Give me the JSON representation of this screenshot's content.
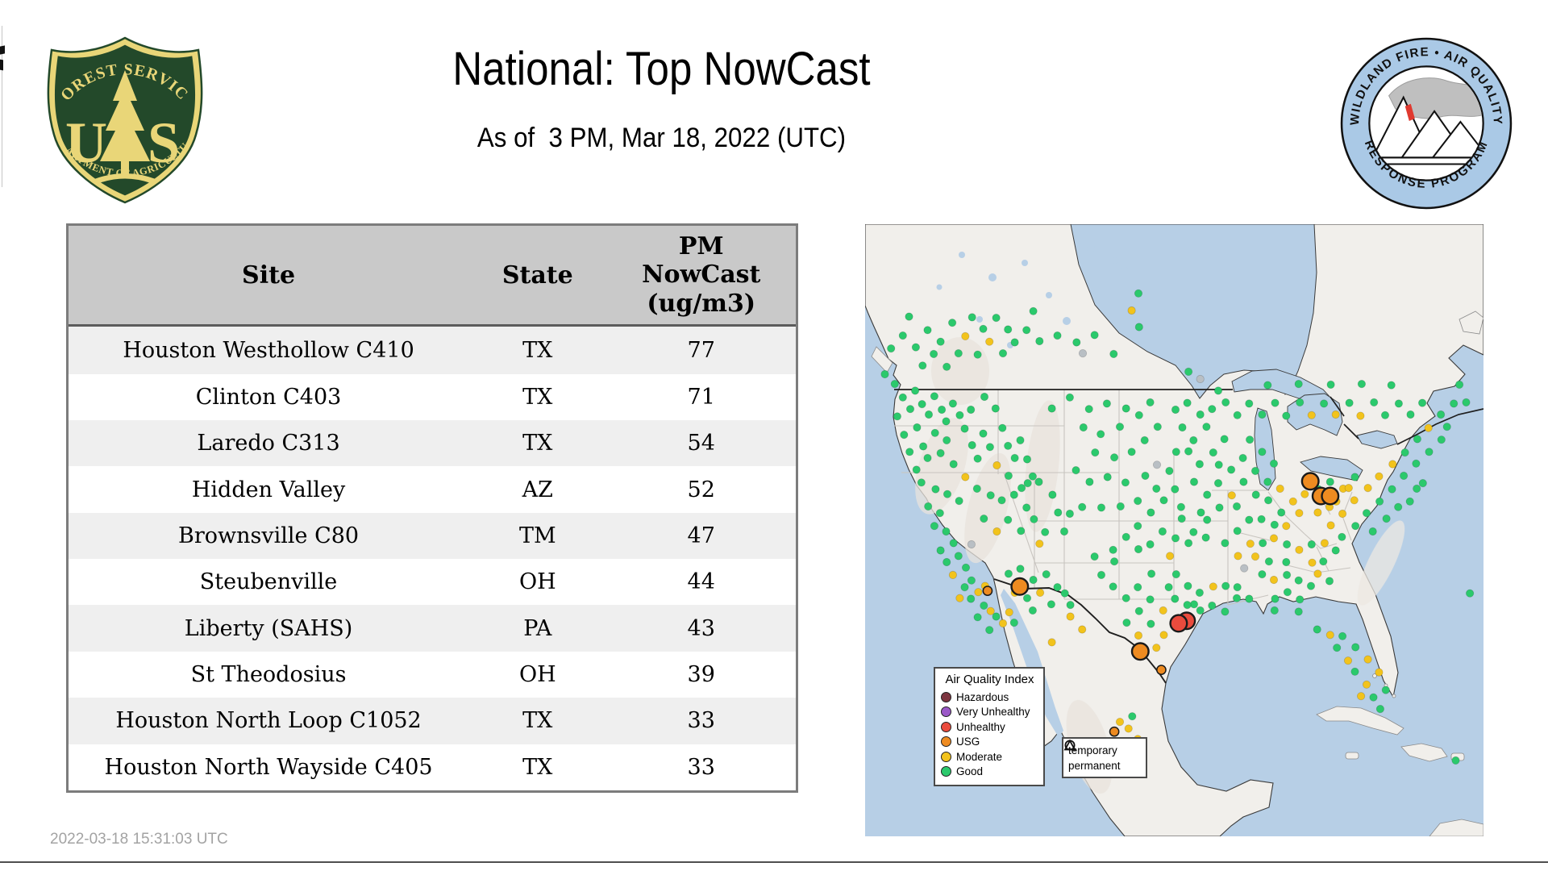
{
  "header": {
    "title": "National: Top NowCast",
    "subtitle": "As of  3 PM, Mar 18, 2022 (UTC)"
  },
  "logos": {
    "usfs": {
      "arc_top": "FOREST SERVICE",
      "letter_left": "U",
      "letter_right": "S",
      "arc_bottom": "DEPARTMENT OF AGRICULTURE",
      "green": "#23492a",
      "gold": "#e9d678"
    },
    "wfaqrp": {
      "arc_top": "WILDLAND FIRE • AIR QUALITY",
      "arc_bottom": "RESPONSE PROGRAM",
      "ring_blue": "#aac9e6",
      "flame_red": "#e0392f"
    }
  },
  "table": {
    "col_site": "Site",
    "col_state": "State",
    "col_pm_lines": [
      "PM",
      "NowCast",
      "(ug/m3)"
    ],
    "rows": [
      {
        "site": "Houston Westhollow C410",
        "state": "TX",
        "value": "77"
      },
      {
        "site": "Clinton C403",
        "state": "TX",
        "value": "71"
      },
      {
        "site": "Laredo C313",
        "state": "TX",
        "value": "54"
      },
      {
        "site": "Hidden Valley",
        "state": "AZ",
        "value": "52"
      },
      {
        "site": "Brownsville C80",
        "state": "TM",
        "value": "47"
      },
      {
        "site": "Steubenville",
        "state": "OH",
        "value": "44"
      },
      {
        "site": "Liberty (SAHS)",
        "state": "PA",
        "value": "43"
      },
      {
        "site": "St Theodosius",
        "state": "OH",
        "value": "39"
      },
      {
        "site": "Houston North Loop C1052",
        "state": "TX",
        "value": "33"
      },
      {
        "site": "Houston North Wayside C405",
        "state": "TX",
        "value": "33"
      }
    ]
  },
  "footer": {
    "timestamp": "2022-03-18 15:31:03 UTC"
  },
  "map": {
    "colors": {
      "g": "#2bc96c",
      "y": "#f2c31c",
      "G": "#b9bfc4",
      "o": "#ee8b21",
      "r": "#ea4b3d"
    },
    "legend_aqi": {
      "title": "Air Quality Index",
      "items": [
        {
          "label": "Hazardous",
          "color": "#7d3540"
        },
        {
          "label": "Very Unhealthy",
          "color": "#9b59c8"
        },
        {
          "label": "Unhealthy",
          "color": "#ea4b3d"
        },
        {
          "label": "USG",
          "color": "#ee8b21"
        },
        {
          "label": "Moderate",
          "color": "#f2c31c"
        },
        {
          "label": "Good",
          "color": "#2bc96c"
        }
      ]
    },
    "legend_type": {
      "items": [
        {
          "shape": "circle",
          "label": "temporary"
        },
        {
          "shape": "triangle",
          "label": "permanent"
        }
      ]
    },
    "dots": [
      [
        3.2,
        24.5
      ],
      [
        4.8,
        26.1
      ],
      [
        6.1,
        28.3
      ],
      [
        7.3,
        30.2
      ],
      [
        5.2,
        31.4
      ],
      [
        8.1,
        27.2
      ],
      [
        9.2,
        29.4
      ],
      [
        10.3,
        31.1
      ],
      [
        8.4,
        33.2
      ],
      [
        6.3,
        34.4
      ],
      [
        11.2,
        28.1
      ],
      [
        12.4,
        30.3
      ],
      [
        13.1,
        32.2
      ],
      [
        11.3,
        34.1
      ],
      [
        9.4,
        36.3
      ],
      [
        7.2,
        37.2
      ],
      [
        14.2,
        29.3
      ],
      [
        15.3,
        31.2
      ],
      [
        16.1,
        33.4
      ],
      [
        13.2,
        35.3
      ],
      [
        10.1,
        38.2
      ],
      [
        8.3,
        40.1
      ],
      [
        12.2,
        37.4
      ],
      [
        14.3,
        39.2
      ],
      [
        16.2,
        41.3,
        "y"
      ],
      [
        9.1,
        42.2
      ],
      [
        11.4,
        43.3
      ],
      [
        13.3,
        44.1
      ],
      [
        15.2,
        45.2
      ],
      [
        10.2,
        46.1
      ],
      [
        12.1,
        47.2
      ],
      [
        17.3,
        36.1
      ],
      [
        18.2,
        38.3
      ],
      [
        19.1,
        34.2
      ],
      [
        20.2,
        36.4
      ],
      [
        17.1,
        30.3
      ],
      [
        19.3,
        28.2
      ],
      [
        21.1,
        30.1
      ],
      [
        22.2,
        33.3
      ],
      [
        23.1,
        36.2
      ],
      [
        21.3,
        39.4,
        "y"
      ],
      [
        23.2,
        41.1
      ],
      [
        18.1,
        43.2
      ],
      [
        20.3,
        44.3
      ],
      [
        22.1,
        45.1
      ],
      [
        24.2,
        38.2
      ],
      [
        25.1,
        35.3
      ],
      [
        26.2,
        38.4
      ],
      [
        27.1,
        41.2
      ],
      [
        25.3,
        43.1
      ],
      [
        11.2,
        49.3
      ],
      [
        13.1,
        50.2
      ],
      [
        14.3,
        52.1
      ],
      [
        12.2,
        53.3
      ],
      [
        15.1,
        54.2
      ],
      [
        16.3,
        56.1
      ],
      [
        14.2,
        57.3,
        "y"
      ],
      [
        17.2,
        58.2
      ],
      [
        18.3,
        60.1,
        "y"
      ],
      [
        19.2,
        62.3
      ],
      [
        20.3,
        63.2,
        "y"
      ],
      [
        21.2,
        64.1
      ],
      [
        22.3,
        65.2,
        "y"
      ],
      [
        20.1,
        66.3
      ],
      [
        18.2,
        64.2
      ],
      [
        16.1,
        59.3
      ],
      [
        15.3,
        61.1,
        "y"
      ],
      [
        13.2,
        55.2
      ],
      [
        23.3,
        63.4,
        "y"
      ],
      [
        24.1,
        65.1
      ],
      [
        17.1,
        61.2
      ],
      [
        19.4,
        59.1,
        "y"
      ],
      [
        19.2,
        48.1
      ],
      [
        21.3,
        50.2,
        "y"
      ],
      [
        23.1,
        48.3
      ],
      [
        25.2,
        50.1
      ],
      [
        27.3,
        48.2
      ],
      [
        29.1,
        50.3
      ],
      [
        31.2,
        47.1
      ],
      [
        28.2,
        52.2,
        "y"
      ],
      [
        26.1,
        46.3
      ],
      [
        30.3,
        44.2
      ],
      [
        28.1,
        42.1
      ],
      [
        26.3,
        42.3
      ],
      [
        24.1,
        44.2
      ],
      [
        32.2,
        50.2
      ],
      [
        33.1,
        47.3
      ],
      [
        23.2,
        57.1
      ],
      [
        25.1,
        56.3
      ],
      [
        27.2,
        58.1
      ],
      [
        29.3,
        57.2
      ],
      [
        31.1,
        59.3
      ],
      [
        26.2,
        61.1
      ],
      [
        28.3,
        60.2,
        "y"
      ],
      [
        30.1,
        62.1
      ],
      [
        32.3,
        60.3
      ],
      [
        24.2,
        60.2,
        "y"
      ],
      [
        33.2,
        62.2
      ],
      [
        27.1,
        63.1
      ],
      [
        30.2,
        30.1
      ],
      [
        33.1,
        28.3
      ],
      [
        36.2,
        30.2
      ],
      [
        39.1,
        29.3
      ],
      [
        42.2,
        30.1
      ],
      [
        35.3,
        33.2
      ],
      [
        38.1,
        34.3
      ],
      [
        41.2,
        33.1
      ],
      [
        44.3,
        31.2
      ],
      [
        46.1,
        29.1
      ],
      [
        37.2,
        37.3
      ],
      [
        40.3,
        38.1
      ],
      [
        43.1,
        37.2
      ],
      [
        45.2,
        35.3
      ],
      [
        47.3,
        33.1
      ],
      [
        34.1,
        40.2
      ],
      [
        36.3,
        42.1
      ],
      [
        39.2,
        41.3
      ],
      [
        42.1,
        42.2
      ],
      [
        45.3,
        41.1
      ],
      [
        47.1,
        43.2
      ],
      [
        49.2,
        40.3
      ],
      [
        44.1,
        45.2
      ],
      [
        41.3,
        46.1
      ],
      [
        38.2,
        46.3
      ],
      [
        35.1,
        46.2
      ],
      [
        48.3,
        45.1
      ],
      [
        50.1,
        43.3
      ],
      [
        46.2,
        47.1
      ],
      [
        4.2,
        20.3
      ],
      [
        6.1,
        18.2
      ],
      [
        8.2,
        20.1
      ],
      [
        10.1,
        17.3
      ],
      [
        12.2,
        19.2
      ],
      [
        14.1,
        16.1
      ],
      [
        16.2,
        18.3,
        "y"
      ],
      [
        11.1,
        21.2
      ],
      [
        9.3,
        23.1
      ],
      [
        13.2,
        23.3
      ],
      [
        15.1,
        21.1
      ],
      [
        17.3,
        15.2
      ],
      [
        19.1,
        17.1
      ],
      [
        21.2,
        15.3
      ],
      [
        23.1,
        17.2
      ],
      [
        20.1,
        19.2,
        "y"
      ],
      [
        22.3,
        21.1
      ],
      [
        24.2,
        19.3
      ],
      [
        7.1,
        15.1
      ],
      [
        18.2,
        21.3
      ],
      [
        26.1,
        17.3
      ],
      [
        28.2,
        19.1
      ],
      [
        31.1,
        18.2
      ],
      [
        34.2,
        19.3
      ],
      [
        37.1,
        18.1
      ],
      [
        27.2,
        14.2
      ],
      [
        44.2,
        11.3
      ],
      [
        43.1,
        14.1,
        "y"
      ],
      [
        44.3,
        16.8
      ],
      [
        40.2,
        21.2
      ],
      [
        52.3,
        24.1
      ],
      [
        57.1,
        27.2
      ],
      [
        50.2,
        30.3
      ],
      [
        52.1,
        29.2
      ],
      [
        54.2,
        31.1
      ],
      [
        51.3,
        33.2
      ],
      [
        53.1,
        35.3
      ],
      [
        55.2,
        33.1
      ],
      [
        56.1,
        30.2
      ],
      [
        52.3,
        37.1
      ],
      [
        54.1,
        39.2
      ],
      [
        56.3,
        37.3
      ],
      [
        58.1,
        35.1
      ],
      [
        57.2,
        39.3
      ],
      [
        50.3,
        37.2
      ],
      [
        53.2,
        42.1
      ],
      [
        55.3,
        44.2
      ],
      [
        57.1,
        42.3
      ],
      [
        59.2,
        40.1
      ],
      [
        61.1,
        38.2
      ],
      [
        59.3,
        44.3,
        "y"
      ],
      [
        61.2,
        42.1
      ],
      [
        63.1,
        40.3
      ],
      [
        51.1,
        46.2
      ],
      [
        54.3,
        47.1
      ],
      [
        57.3,
        46.3
      ],
      [
        60.1,
        46.1
      ],
      [
        63.2,
        44.2
      ],
      [
        65.1,
        42.1
      ],
      [
        64.2,
        37.2
      ],
      [
        66.1,
        39.1
      ],
      [
        62.2,
        35.2
      ],
      [
        65.2,
        45.1
      ],
      [
        67.1,
        43.2,
        "y"
      ],
      [
        69.2,
        45.3,
        "y"
      ],
      [
        67.3,
        47.1
      ],
      [
        64.1,
        48.2
      ],
      [
        66.2,
        49.1
      ],
      [
        68.1,
        49.3,
        "y"
      ],
      [
        70.2,
        47.2,
        "y"
      ],
      [
        71.1,
        44.1,
        "y"
      ],
      [
        62.1,
        48.3
      ],
      [
        60.2,
        50.1
      ],
      [
        62.3,
        52.2,
        "y"
      ],
      [
        64.3,
        52.1
      ],
      [
        66.1,
        51.3,
        "y"
      ],
      [
        68.2,
        52.3
      ],
      [
        58.2,
        52.1
      ],
      [
        60.3,
        54.2,
        "y"
      ],
      [
        63.1,
        54.3,
        "y"
      ],
      [
        65.3,
        55.1
      ],
      [
        48.1,
        50.2
      ],
      [
        50.2,
        51.3
      ],
      [
        52.3,
        52.1
      ],
      [
        46.1,
        52.3
      ],
      [
        44.2,
        53.1
      ],
      [
        49.3,
        54.2,
        "y"
      ],
      [
        53.1,
        50.3
      ],
      [
        42.2,
        51.1
      ],
      [
        40.1,
        53.2
      ],
      [
        51.2,
        48.1
      ],
      [
        44.1,
        49.3
      ],
      [
        55.1,
        51.2
      ],
      [
        55.3,
        48.3
      ],
      [
        38.2,
        57.3
      ],
      [
        40.1,
        59.2
      ],
      [
        42.2,
        61.1
      ],
      [
        44.3,
        63.2
      ],
      [
        46.1,
        61.3
      ],
      [
        48.2,
        63.1,
        "y"
      ],
      [
        50.1,
        61.2
      ],
      [
        46.3,
        57.1
      ],
      [
        44.1,
        59.3
      ],
      [
        42.3,
        65.1
      ],
      [
        44.2,
        67.2,
        "y"
      ],
      [
        46.2,
        65.3
      ],
      [
        48.3,
        67.1,
        "y"
      ],
      [
        47.1,
        69.2,
        "y"
      ],
      [
        40.3,
        55.1
      ],
      [
        37.1,
        54.3
      ],
      [
        52.2,
        59.1
      ],
      [
        50.3,
        57.2
      ],
      [
        53.2,
        62.1
      ],
      [
        49.1,
        59.3
      ],
      [
        45.2,
        70.1,
        "y"
      ],
      [
        52.1,
        62.2
      ],
      [
        54.2,
        63.1
      ],
      [
        56.1,
        62.3
      ],
      [
        58.2,
        63.3
      ],
      [
        60.1,
        61.1
      ],
      [
        56.3,
        59.2,
        "y"
      ],
      [
        58.3,
        59.1
      ],
      [
        60.2,
        59.3
      ],
      [
        62.1,
        61.2
      ],
      [
        54.1,
        60.2
      ],
      [
        64.2,
        57.2
      ],
      [
        66.1,
        58.1,
        "y"
      ],
      [
        68.2,
        57.3
      ],
      [
        70.1,
        58.2
      ],
      [
        68.3,
        60.1
      ],
      [
        66.3,
        61.2
      ],
      [
        70.3,
        61.3
      ],
      [
        72.1,
        59.1
      ],
      [
        68.1,
        55.2
      ],
      [
        72.3,
        55.3,
        "y"
      ],
      [
        74.1,
        55.1
      ],
      [
        70.2,
        53.2,
        "y"
      ],
      [
        72.2,
        52.3
      ],
      [
        74.3,
        52.1,
        "y"
      ],
      [
        76.1,
        53.3
      ],
      [
        66.2,
        63.1
      ],
      [
        70.1,
        63.3
      ],
      [
        73.2,
        57.1,
        "y"
      ],
      [
        75.1,
        58.3
      ],
      [
        73.1,
        66.2
      ],
      [
        75.2,
        67.1,
        "y"
      ],
      [
        76.3,
        69.2
      ],
      [
        78.1,
        71.3,
        "y"
      ],
      [
        79.2,
        73.1
      ],
      [
        81.1,
        75.2,
        "y"
      ],
      [
        82.2,
        77.3
      ],
      [
        81.3,
        71.1,
        "y"
      ],
      [
        79.3,
        69.1
      ],
      [
        83.1,
        73.2,
        "y"
      ],
      [
        84.2,
        76.1
      ],
      [
        77.2,
        67.3
      ],
      [
        80.2,
        77.1,
        "y"
      ],
      [
        83.3,
        79.2
      ],
      [
        73.2,
        47.1,
        "y"
      ],
      [
        75.1,
        46.2,
        "y"
      ],
      [
        77.2,
        47.3,
        "y"
      ],
      [
        79.1,
        45.1,
        "y"
      ],
      [
        75.3,
        49.2,
        "y"
      ],
      [
        77.1,
        51.1
      ],
      [
        79.3,
        49.3
      ],
      [
        81.1,
        47.2
      ],
      [
        83.2,
        45.3
      ],
      [
        81.3,
        43.1,
        "y"
      ],
      [
        83.1,
        41.2,
        "y"
      ],
      [
        85.2,
        43.3
      ],
      [
        87.1,
        41.1
      ],
      [
        85.3,
        39.2,
        "y"
      ],
      [
        87.3,
        37.3
      ],
      [
        89.1,
        39.1
      ],
      [
        91.2,
        37.2
      ],
      [
        89.3,
        35.1
      ],
      [
        91.1,
        33.3,
        "y"
      ],
      [
        93.2,
        35.2
      ],
      [
        77.3,
        43.2,
        "y"
      ],
      [
        79.2,
        41.3
      ],
      [
        75.2,
        42.1
      ],
      [
        73.3,
        43.3
      ],
      [
        89.2,
        43.2
      ],
      [
        93.1,
        31.1
      ],
      [
        95.2,
        29.3
      ],
      [
        94.1,
        33.1
      ],
      [
        76.2,
        45.3,
        "y"
      ],
      [
        78.2,
        43.1,
        "y"
      ],
      [
        82.1,
        50.2
      ],
      [
        84.3,
        48.1
      ],
      [
        86.2,
        46.2
      ],
      [
        88.1,
        45.3
      ],
      [
        90.2,
        42.3
      ],
      [
        96.1,
        26.2
      ],
      [
        97.2,
        29.1
      ],
      [
        58.3,
        29.1
      ],
      [
        60.2,
        31.2
      ],
      [
        62.1,
        29.3
      ],
      [
        64.2,
        31.1
      ],
      [
        66.3,
        29.2
      ],
      [
        68.1,
        31.3
      ],
      [
        70.3,
        29.1
      ],
      [
        72.2,
        31.2,
        "y"
      ],
      [
        74.2,
        29.3
      ],
      [
        76.1,
        31.1,
        "y"
      ],
      [
        78.3,
        29.2
      ],
      [
        80.1,
        31.3,
        "y"
      ],
      [
        82.3,
        29.1
      ],
      [
        84.1,
        31.2
      ],
      [
        86.3,
        29.3
      ],
      [
        88.2,
        31.1
      ],
      [
        90.1,
        29.2
      ],
      [
        85.1,
        26.3
      ],
      [
        80.3,
        26.1
      ],
      [
        75.3,
        26.2
      ],
      [
        70.1,
        26.1
      ],
      [
        65.1,
        26.3
      ],
      [
        35.2,
        21.1,
        "G"
      ],
      [
        47.2,
        39.3,
        "G"
      ],
      [
        61.3,
        56.2,
        "G"
      ],
      [
        17.2,
        52.3,
        "G"
      ],
      [
        54.2,
        25.3,
        "G"
      ],
      [
        41.2,
        81.3,
        "y"
      ],
      [
        42.6,
        82.4,
        "y"
      ],
      [
        43.2,
        80.4
      ],
      [
        44.1,
        84.1,
        "y"
      ],
      [
        33.2,
        64.1,
        "y"
      ],
      [
        35.1,
        66.2,
        "y"
      ],
      [
        30.2,
        68.3,
        "y"
      ],
      [
        95.5,
        87.6
      ],
      [
        97.8,
        60.3
      ]
    ],
    "small_markers": [
      [
        19.8,
        59.9
      ],
      [
        47.9,
        72.8
      ],
      [
        40.3,
        82.9
      ]
    ],
    "big_markers": [
      [
        72.0,
        42.0,
        "usg"
      ],
      [
        73.7,
        44.4,
        "usg"
      ],
      [
        75.2,
        44.4,
        "usg"
      ],
      [
        25.0,
        59.2,
        "usg"
      ],
      [
        52.0,
        64.8,
        "unh"
      ],
      [
        50.7,
        65.2,
        "unh"
      ],
      [
        44.5,
        69.8,
        "usg"
      ]
    ]
  }
}
